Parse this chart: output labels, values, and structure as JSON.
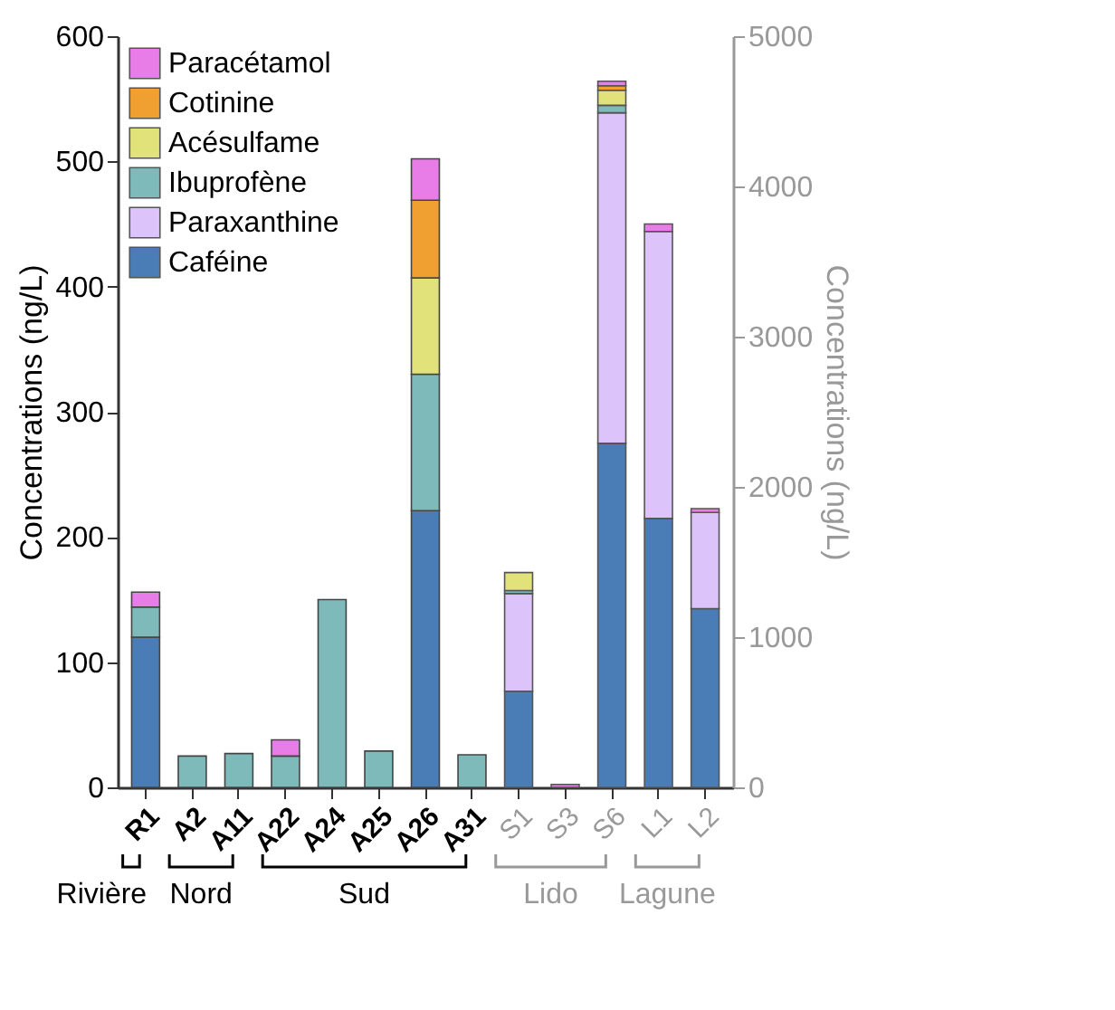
{
  "chart_data": {
    "type": "bar",
    "stacked": true,
    "categories": [
      "R1",
      "A2",
      "A11",
      "A22",
      "A24",
      "A25",
      "A26",
      "A31",
      "S1",
      "S3",
      "S6",
      "L1",
      "L2"
    ],
    "ylabel": "Concentrations (ng/L)",
    "y2label": "Concentrations (ng/L)",
    "ylim": [
      0,
      600
    ],
    "yticks": [
      0,
      100,
      200,
      300,
      400,
      500,
      600
    ],
    "y2lim": [
      0,
      5000
    ],
    "y2ticks": [
      0,
      1000,
      2000,
      3000,
      4000,
      5000
    ],
    "legend": "top left",
    "grid": false,
    "annotations": [
      "Rivière",
      "Nord",
      "Sud",
      "Lido",
      "Lagune"
    ],
    "series": [
      {
        "name": "Caféine",
        "color": "#4a7db5",
        "values": [
          120,
          null,
          null,
          null,
          null,
          null,
          221,
          null,
          null,
          null,
          null,
          null,
          null
        ]
      },
      {
        "name": "Paraxanthine",
        "color": "#dcc3f9",
        "values": [
          null,
          null,
          null,
          null,
          null,
          null,
          null,
          null,
          null,
          null,
          null,
          null,
          null
        ]
      },
      {
        "name": "Ibuprofène",
        "color": "#7fbaba",
        "values": [
          24,
          25,
          27,
          25,
          150,
          29,
          109,
          26,
          null,
          null,
          null,
          null,
          null
        ]
      },
      {
        "name": "Acésulfame",
        "color": "#e2e27a",
        "values": [
          null,
          null,
          null,
          null,
          null,
          null,
          77,
          null,
          null,
          null,
          null,
          null,
          null
        ]
      },
      {
        "name": "Cotinine",
        "color": "#f0a030",
        "values": [
          null,
          null,
          null,
          null,
          null,
          null,
          62,
          null,
          null,
          null,
          null,
          null,
          null
        ]
      },
      {
        "name": "Paracétamol",
        "color": "#e87de8",
        "values": [
          12,
          null,
          null,
          13,
          null,
          null,
          33,
          null,
          null,
          null,
          null,
          null,
          null
        ]
      },
      {
        "axis": "y2",
        "color": "#4a7db5",
        "values": [
          null,
          null,
          null,
          null,
          null,
          null,
          null,
          null,
          640,
          null,
          2290,
          1790,
          1190
        ]
      },
      {
        "axis": "y2",
        "color": "#dcc3f9",
        "values": [
          null,
          null,
          null,
          null,
          null,
          null,
          null,
          null,
          650,
          null,
          2200,
          1910,
          640
        ]
      },
      {
        "axis": "y2",
        "color": "#7fbaba",
        "values": [
          null,
          null,
          null,
          null,
          null,
          null,
          null,
          null,
          20,
          null,
          50,
          null,
          null
        ]
      },
      {
        "axis": "y2",
        "color": "#e2e27a",
        "values": [
          null,
          null,
          null,
          null,
          null,
          null,
          null,
          null,
          120,
          null,
          100,
          null,
          null
        ]
      },
      {
        "axis": "y2",
        "color": "#f0a030",
        "values": [
          null,
          null,
          null,
          null,
          null,
          null,
          null,
          null,
          null,
          null,
          30,
          null,
          null
        ]
      },
      {
        "axis": "y2",
        "color": "#e87de8",
        "values": [
          null,
          null,
          null,
          null,
          null,
          null,
          null,
          null,
          null,
          20,
          30,
          50,
          25
        ]
      }
    ]
  }
}
